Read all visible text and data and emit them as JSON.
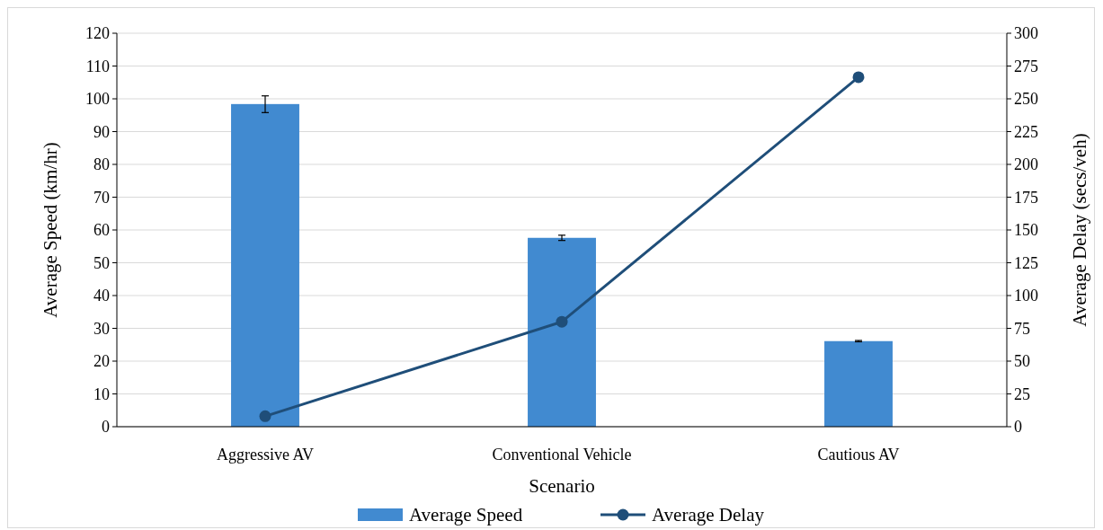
{
  "chart_data": {
    "type": "bar",
    "categories": [
      "Aggressive AV",
      "Conventional Vehicle",
      "Cautious AV"
    ],
    "xlabel": "Scenario",
    "ylabel": "Average Speed (km/hr)",
    "y2label": "Average Delay (secs/veh)",
    "ylim": [
      0,
      120
    ],
    "yticks": [
      0,
      10,
      20,
      30,
      40,
      50,
      60,
      70,
      80,
      90,
      100,
      110,
      120
    ],
    "y2lim": [
      0,
      300
    ],
    "y2ticks": [
      0,
      25,
      50,
      75,
      100,
      125,
      150,
      175,
      200,
      225,
      250,
      275,
      300
    ],
    "grid": "y",
    "legend": "bottom",
    "series": [
      {
        "name": "Average Speed",
        "color": "#418ad0",
        "values": [
          98.4,
          57.6,
          26.1
        ],
        "errors": [
          [
            95.8,
            100.9
          ],
          [
            56.8,
            58.4
          ],
          [
            25.9,
            26.3
          ]
        ]
      },
      {
        "name": "Average Delay",
        "type": "line",
        "axis": "y2",
        "color": "#1f4e79",
        "marker": "circle",
        "line_style": "solid",
        "values": [
          8,
          80,
          266.5
        ]
      }
    ]
  }
}
